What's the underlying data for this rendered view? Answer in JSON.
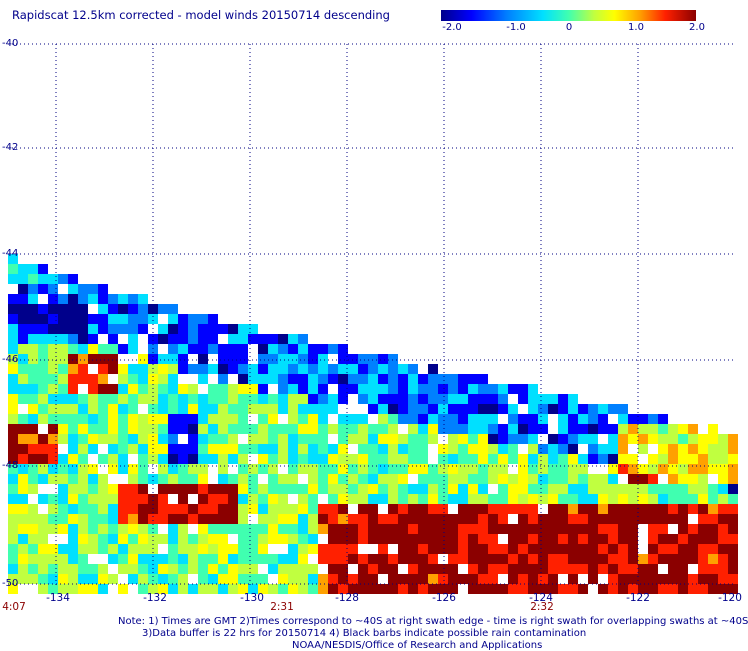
{
  "header": {
    "title": "Rapidscat 12.5km corrected - model winds 20150714 descending"
  },
  "colorbar": {
    "labels": [
      "-2.0",
      "-1.0",
      "0",
      "1.0",
      "2.0"
    ],
    "min": -2.0,
    "max": 2.0,
    "colors": [
      "#00008b",
      "#0000ff",
      "#0080ff",
      "#00e0ff",
      "#40ffb0",
      "#c0ff40",
      "#ffff00",
      "#ffa000",
      "#ff2000",
      "#8b0000"
    ]
  },
  "map": {
    "lat_labels": [
      "-40",
      "-42",
      "-44",
      "-46",
      "-48",
      "-50"
    ],
    "lon_labels": [
      "-134",
      "-132",
      "-130",
      "-128",
      "-126",
      "-124",
      "-122",
      "-120"
    ],
    "time_labels": [
      "4:07",
      "2:31",
      "2:32"
    ]
  },
  "footer": {
    "note_line1": "Note: 1) Times are GMT 2)Times correspond to ~40S at right swath edge - time is right swath for overlapping swaths at ~40S",
    "note_line2": "3)Data buffer is 22 hrs for 20150714 4) Black barbs indicate possible rain contamination",
    "credit": "NOAA/NESDIS/Office of Research and Applications"
  }
}
